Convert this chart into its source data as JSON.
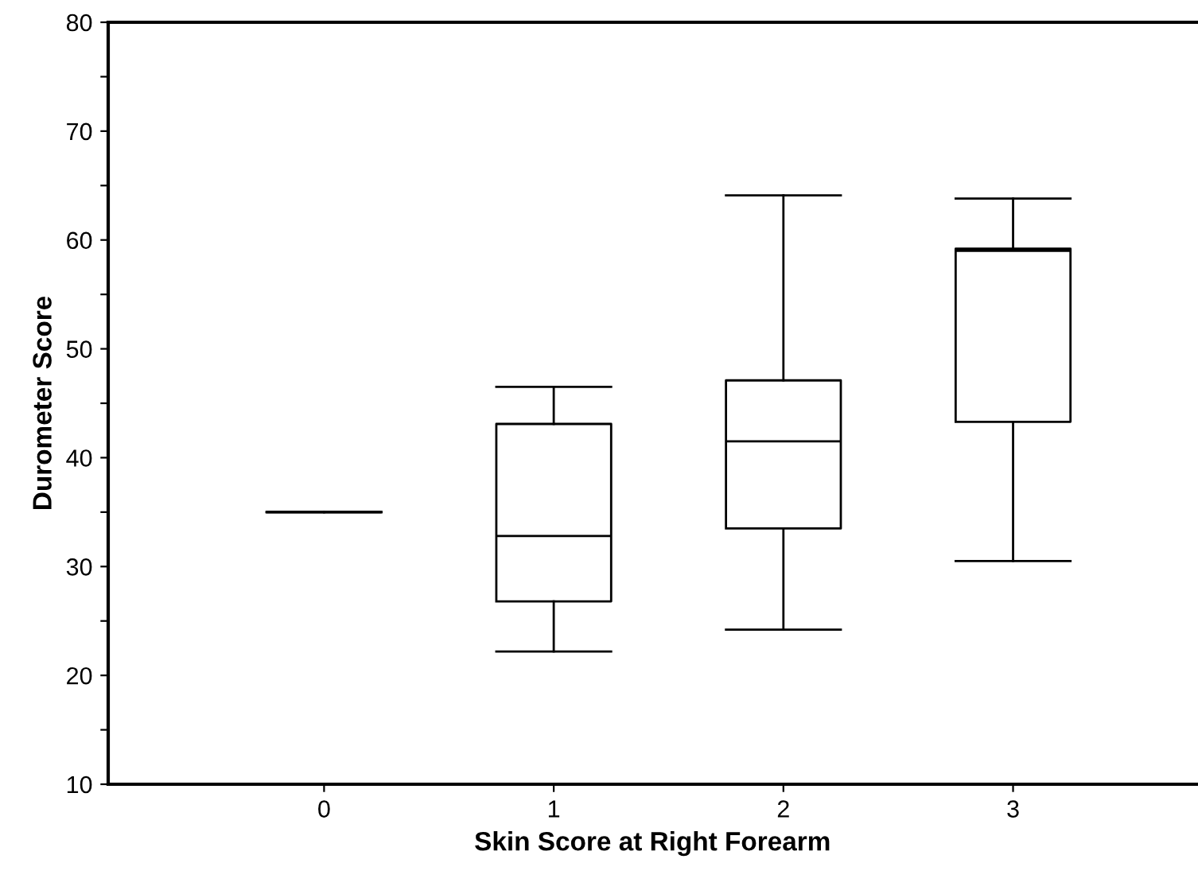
{
  "chart_data": {
    "type": "box",
    "xlabel": "Skin Score at Right Forearm",
    "ylabel": "Durometer Score",
    "categories": [
      "0",
      "1",
      "2",
      "3"
    ],
    "boxes": [
      {
        "low": 35,
        "q1": 35,
        "median": 35,
        "q3": 35,
        "high": 35
      },
      {
        "low": 22.2,
        "q1": 26.8,
        "median": 32.8,
        "q3": 43.1,
        "high": 46.5
      },
      {
        "low": 24.2,
        "q1": 33.5,
        "median": 41.5,
        "q3": 47.1,
        "high": 64.1
      },
      {
        "low": 30.5,
        "q1": 43.3,
        "median": 59.0,
        "q3": 59.2,
        "high": 63.8
      }
    ],
    "color": "#000000",
    "ylim": [
      10,
      80
    ],
    "yticks": [
      10,
      {
        "value": 15,
        "label": null
      },
      20,
      {
        "value": 25,
        "label": null
      },
      30,
      {
        "value": 35,
        "label": null
      },
      40,
      {
        "value": 45,
        "label": null
      },
      50,
      {
        "value": 55,
        "label": null
      },
      60,
      {
        "value": 65,
        "label": null
      },
      70,
      {
        "value": 75,
        "label": null
      },
      80
    ],
    "grid": false
  }
}
